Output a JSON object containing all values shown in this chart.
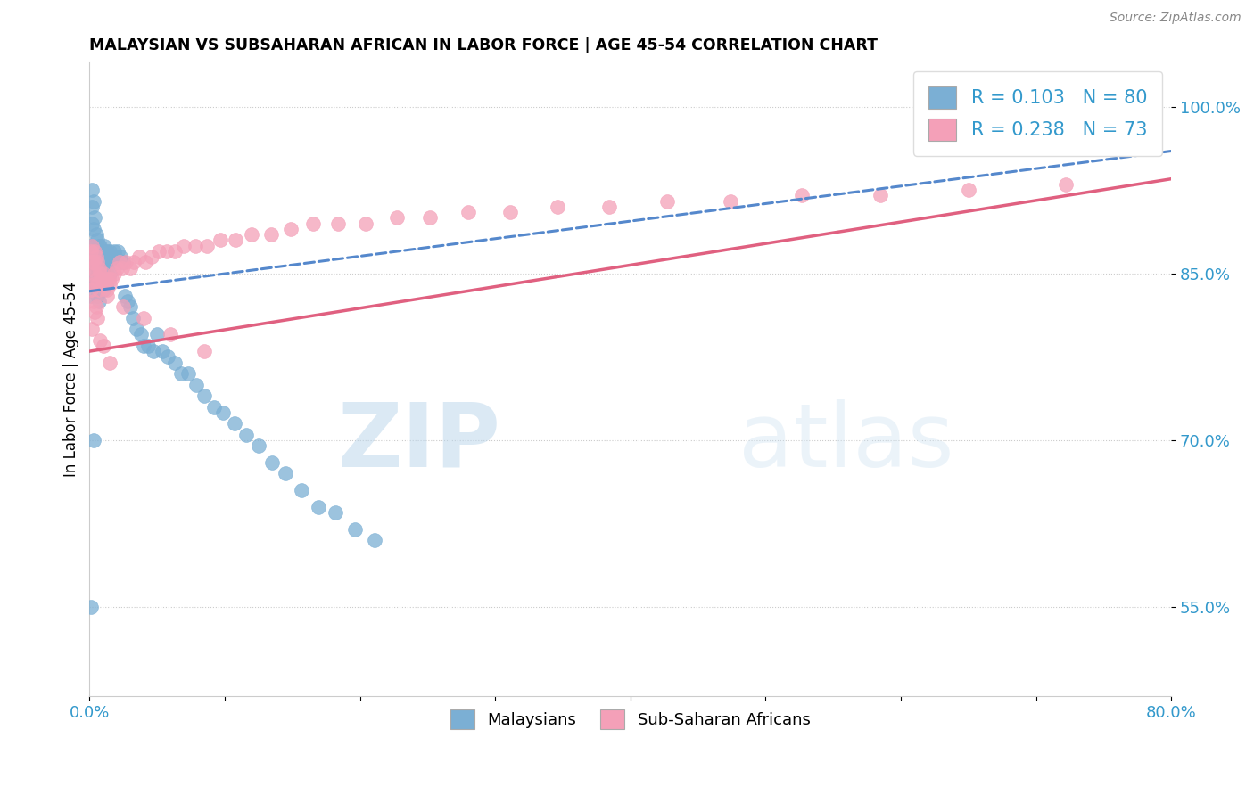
{
  "title": "MALAYSIAN VS SUBSAHARAN AFRICAN IN LABOR FORCE | AGE 45-54 CORRELATION CHART",
  "source": "Source: ZipAtlas.com",
  "ylabel": "In Labor Force | Age 45-54",
  "xlim": [
    0.0,
    0.8
  ],
  "ylim": [
    0.47,
    1.04
  ],
  "yticks": [
    0.55,
    0.7,
    0.85,
    1.0
  ],
  "ytick_labels": [
    "55.0%",
    "70.0%",
    "85.0%",
    "100.0%"
  ],
  "xticks": [
    0.0,
    0.1,
    0.2,
    0.3,
    0.4,
    0.5,
    0.6,
    0.7,
    0.8
  ],
  "xtick_labels": [
    "0.0%",
    "",
    "",
    "",
    "",
    "",
    "",
    "",
    "80.0%"
  ],
  "r_malaysian": 0.103,
  "n_malaysian": 80,
  "r_subsaharan": 0.238,
  "n_subsaharan": 73,
  "color_malaysian": "#7bafd4",
  "color_subsaharan": "#f4a0b8",
  "color_trendline_malaysian": "#5588cc",
  "color_trendline_subsaharan": "#e06080",
  "color_labels": "#3399cc",
  "watermark_zip": "ZIP",
  "watermark_atlas": "atlas",
  "malaysian_x": [
    0.001,
    0.001,
    0.001,
    0.001,
    0.002,
    0.002,
    0.002,
    0.002,
    0.002,
    0.003,
    0.003,
    0.003,
    0.004,
    0.004,
    0.004,
    0.005,
    0.005,
    0.005,
    0.006,
    0.006,
    0.006,
    0.007,
    0.007,
    0.007,
    0.008,
    0.008,
    0.009,
    0.009,
    0.01,
    0.01,
    0.01,
    0.011,
    0.011,
    0.012,
    0.012,
    0.013,
    0.013,
    0.014,
    0.015,
    0.015,
    0.016,
    0.017,
    0.018,
    0.019,
    0.02,
    0.021,
    0.022,
    0.023,
    0.025,
    0.026,
    0.028,
    0.03,
    0.032,
    0.035,
    0.038,
    0.04,
    0.043,
    0.047,
    0.05,
    0.054,
    0.058,
    0.063,
    0.068,
    0.073,
    0.079,
    0.085,
    0.092,
    0.099,
    0.107,
    0.116,
    0.125,
    0.135,
    0.145,
    0.157,
    0.169,
    0.182,
    0.196,
    0.211,
    0.003,
    0.001
  ],
  "malaysian_y": [
    0.84,
    0.86,
    0.875,
    0.83,
    0.91,
    0.925,
    0.895,
    0.875,
    0.855,
    0.915,
    0.89,
    0.87,
    0.9,
    0.87,
    0.845,
    0.885,
    0.86,
    0.84,
    0.88,
    0.855,
    0.83,
    0.875,
    0.85,
    0.825,
    0.875,
    0.85,
    0.87,
    0.845,
    0.87,
    0.855,
    0.835,
    0.875,
    0.855,
    0.86,
    0.84,
    0.87,
    0.85,
    0.865,
    0.87,
    0.85,
    0.865,
    0.86,
    0.87,
    0.865,
    0.86,
    0.87,
    0.86,
    0.865,
    0.86,
    0.83,
    0.825,
    0.82,
    0.81,
    0.8,
    0.795,
    0.785,
    0.785,
    0.78,
    0.795,
    0.78,
    0.775,
    0.77,
    0.76,
    0.76,
    0.75,
    0.74,
    0.73,
    0.725,
    0.715,
    0.705,
    0.695,
    0.68,
    0.67,
    0.655,
    0.64,
    0.635,
    0.62,
    0.61,
    0.7,
    0.55
  ],
  "subsaharan_x": [
    0.001,
    0.001,
    0.002,
    0.002,
    0.003,
    0.003,
    0.004,
    0.004,
    0.005,
    0.005,
    0.006,
    0.006,
    0.007,
    0.007,
    0.008,
    0.009,
    0.01,
    0.011,
    0.012,
    0.013,
    0.014,
    0.015,
    0.016,
    0.018,
    0.02,
    0.022,
    0.024,
    0.027,
    0.03,
    0.033,
    0.037,
    0.041,
    0.046,
    0.051,
    0.057,
    0.063,
    0.07,
    0.078,
    0.087,
    0.097,
    0.108,
    0.12,
    0.134,
    0.149,
    0.165,
    0.184,
    0.204,
    0.227,
    0.252,
    0.28,
    0.311,
    0.346,
    0.384,
    0.427,
    0.474,
    0.527,
    0.585,
    0.65,
    0.722,
    0.001,
    0.013,
    0.025,
    0.04,
    0.06,
    0.085,
    0.002,
    0.003,
    0.004,
    0.005,
    0.006,
    0.008,
    0.01,
    0.015
  ],
  "subsaharan_y": [
    0.87,
    0.855,
    0.875,
    0.86,
    0.86,
    0.84,
    0.87,
    0.85,
    0.865,
    0.845,
    0.86,
    0.84,
    0.855,
    0.835,
    0.85,
    0.845,
    0.85,
    0.84,
    0.845,
    0.835,
    0.845,
    0.84,
    0.845,
    0.85,
    0.855,
    0.86,
    0.855,
    0.86,
    0.855,
    0.86,
    0.865,
    0.86,
    0.865,
    0.87,
    0.87,
    0.87,
    0.875,
    0.875,
    0.875,
    0.88,
    0.88,
    0.885,
    0.885,
    0.89,
    0.895,
    0.895,
    0.895,
    0.9,
    0.9,
    0.905,
    0.905,
    0.91,
    0.91,
    0.915,
    0.915,
    0.92,
    0.92,
    0.925,
    0.93,
    0.835,
    0.83,
    0.82,
    0.81,
    0.795,
    0.78,
    0.8,
    0.825,
    0.815,
    0.82,
    0.81,
    0.79,
    0.785,
    0.77
  ],
  "trendline_m_x0": 0.0,
  "trendline_m_x1": 0.8,
  "trendline_m_y0": 0.834,
  "trendline_m_y1": 0.96,
  "trendline_s_x0": 0.0,
  "trendline_s_x1": 0.8,
  "trendline_s_y0": 0.78,
  "trendline_s_y1": 0.935
}
